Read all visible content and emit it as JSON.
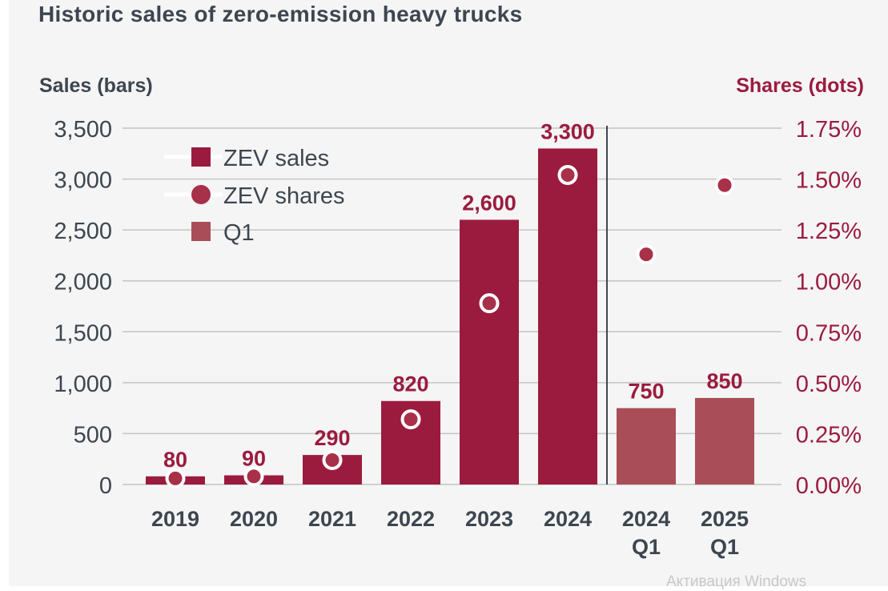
{
  "chart_data": {
    "type": "bar",
    "title": "Historic sales of zero-emission heavy trucks",
    "ylabel": "Sales (bars)",
    "y2label": "Shares (dots)",
    "xlabel": "",
    "categories": [
      {
        "line1": "2019",
        "line2": ""
      },
      {
        "line1": "2020",
        "line2": ""
      },
      {
        "line1": "2021",
        "line2": ""
      },
      {
        "line1": "2022",
        "line2": ""
      },
      {
        "line1": "2023",
        "line2": ""
      },
      {
        "line1": "2024",
        "line2": ""
      },
      {
        "line1": "2024",
        "line2": "Q1"
      },
      {
        "line1": "2025",
        "line2": "Q1"
      }
    ],
    "series": [
      {
        "name": "ZEV sales",
        "kind": "bar",
        "axis": "left",
        "values": [
          80,
          90,
          290,
          820,
          2600,
          3300,
          750,
          850
        ],
        "labels": [
          "80",
          "90",
          "290",
          "820",
          "2,600",
          "3,300",
          "750",
          "850"
        ],
        "is_q1": [
          false,
          false,
          false,
          false,
          false,
          false,
          true,
          true
        ]
      },
      {
        "name": "ZEV shares",
        "kind": "dot",
        "axis": "right",
        "unit": "%",
        "values": [
          0.03,
          0.04,
          0.12,
          0.32,
          0.89,
          1.52,
          1.13,
          1.47
        ]
      }
    ],
    "legend": [
      {
        "label": "ZEV sales",
        "marker": "square",
        "color_key": "bar"
      },
      {
        "label": "ZEV shares",
        "marker": "circle",
        "color_key": "dot"
      },
      {
        "label": "Q1",
        "marker": "square",
        "color_key": "q1"
      }
    ],
    "legend_position": "top-left",
    "ylim": [
      0,
      3500
    ],
    "y2lim": [
      0,
      1.75
    ],
    "yticks": [
      0,
      500,
      1000,
      1500,
      2000,
      2500,
      3000,
      3500
    ],
    "ytick_labels": [
      "0",
      "500",
      "1,000",
      "1,500",
      "2,000",
      "2,500",
      "3,000",
      "3,500"
    ],
    "y2ticks": [
      0,
      0.25,
      0.5,
      0.75,
      1.0,
      1.25,
      1.5,
      1.75
    ],
    "y2tick_labels": [
      "0.00%",
      "0.25%",
      "0.50%",
      "0.75%",
      "1.00%",
      "1.25%",
      "1.50%",
      "1.75%"
    ],
    "separator_after_category": 5,
    "grid": true,
    "colors": {
      "bar": "#9b1b3f",
      "q1": "#a94e58",
      "dot": "#a83048",
      "value_label": "#9b1b3f",
      "text": "#3d4650",
      "right_axis": "#9b1b3f",
      "grid": "#c4c4c4",
      "separator": "#3d4650"
    }
  },
  "watermark": "Активация Windows"
}
